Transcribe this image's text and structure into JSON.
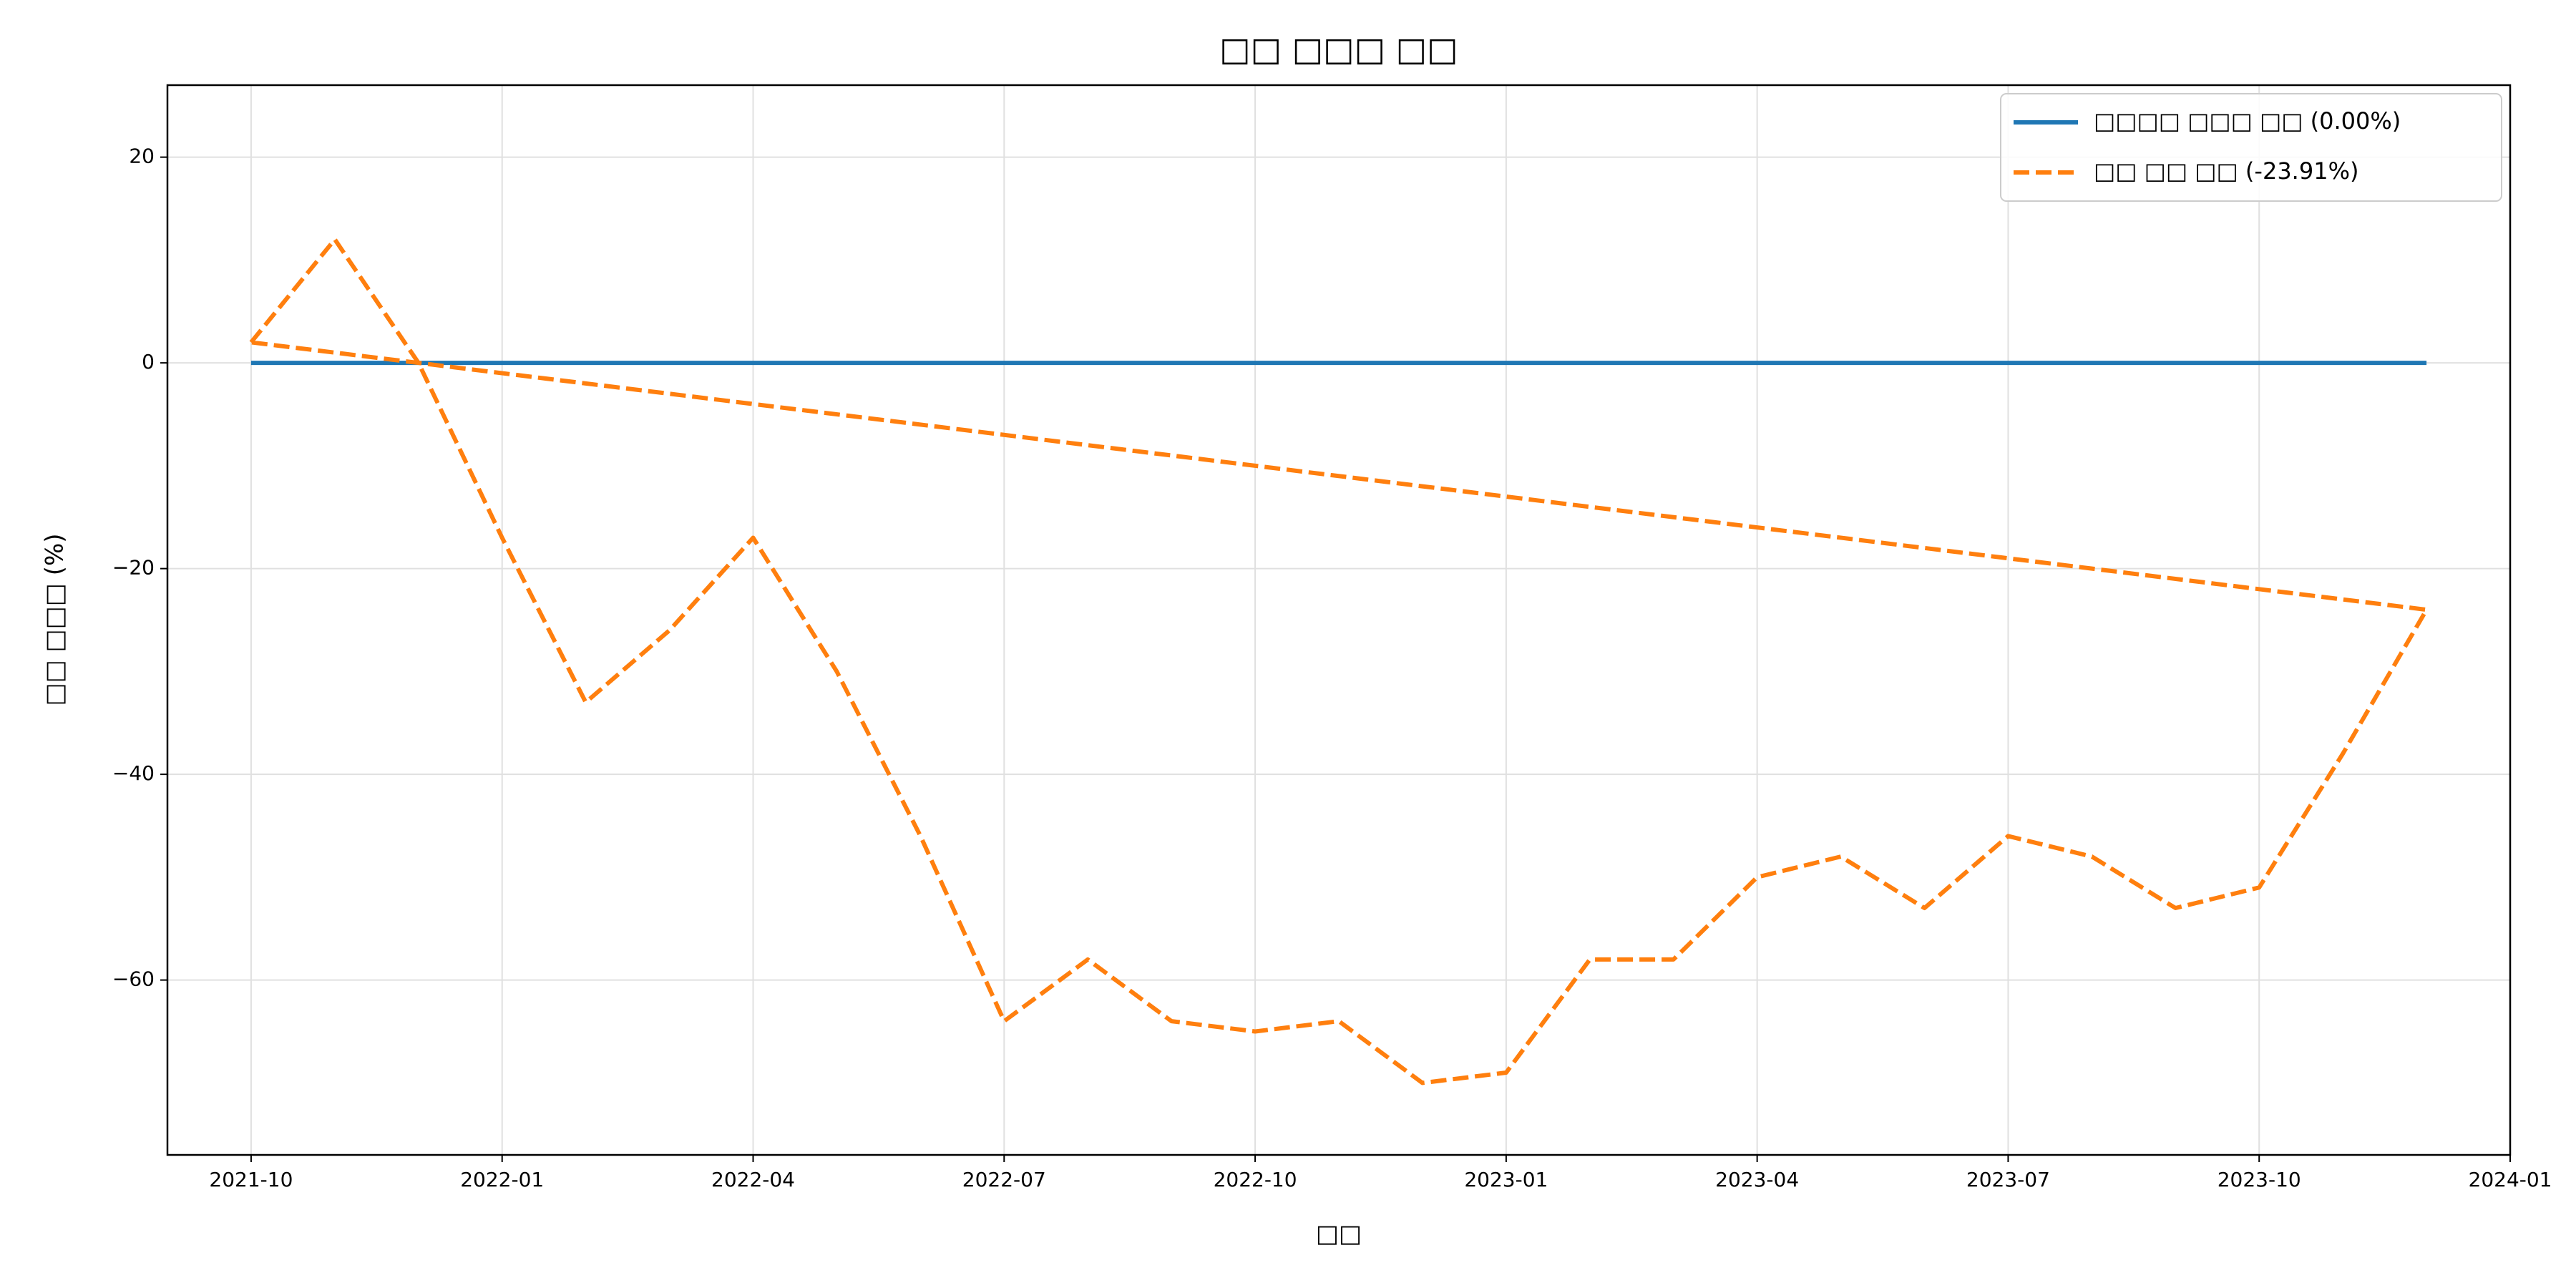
{
  "chart_data": {
    "type": "line",
    "title": "□□ □□□ □□",
    "x_label": "□□",
    "y_label": "□□ □□□ (%)",
    "x": [
      "2021-10",
      "2021-11",
      "2021-12",
      "2022-01",
      "2022-02",
      "2022-03",
      "2022-04",
      "2022-05",
      "2022-06",
      "2022-07",
      "2022-08",
      "2022-09",
      "2022-10",
      "2022-11",
      "2022-12",
      "2023-01",
      "2023-02",
      "2023-03",
      "2023-04",
      "2023-05",
      "2023-06",
      "2023-07",
      "2023-08",
      "2023-09",
      "2023-10",
      "2023-11",
      "2023-12",
      "2021-10"
    ],
    "series": [
      {
        "name": "□□□□ □□□ □□ (0.00%)",
        "color": "#1f77b4",
        "dash": false,
        "values": [
          0,
          0,
          0,
          0,
          0,
          0,
          0,
          0,
          0,
          0,
          0,
          0,
          0,
          0,
          0,
          0,
          0,
          0,
          0,
          0,
          0,
          0,
          0,
          0,
          0,
          0,
          0,
          null
        ]
      },
      {
        "name": "□□ □□ □□ (-23.91%)",
        "color": "#ff7f0e",
        "dash": true,
        "values": [
          2,
          12,
          0,
          -17,
          -33,
          -26,
          -17,
          -30,
          -46,
          -64,
          -58,
          -64,
          -65,
          -64,
          -70,
          -69,
          -58,
          -58,
          -50,
          -48,
          -53,
          -46,
          -48,
          -53,
          -51,
          -38,
          -24,
          2
        ]
      }
    ],
    "xlim": [
      "2021-09",
      "2024-01"
    ],
    "xticks": [
      "2021-10",
      "2022-01",
      "2022-04",
      "2022-07",
      "2022-10",
      "2023-01",
      "2023-04",
      "2023-07",
      "2023-10",
      "2024-01"
    ],
    "ylim": [
      -77,
      27
    ],
    "yticks": [
      {
        "value": -60,
        "label": "−60"
      },
      {
        "value": -40,
        "label": "−40"
      },
      {
        "value": -20,
        "label": "−20"
      },
      0,
      20
    ],
    "grid": true,
    "legend": "upper right"
  }
}
